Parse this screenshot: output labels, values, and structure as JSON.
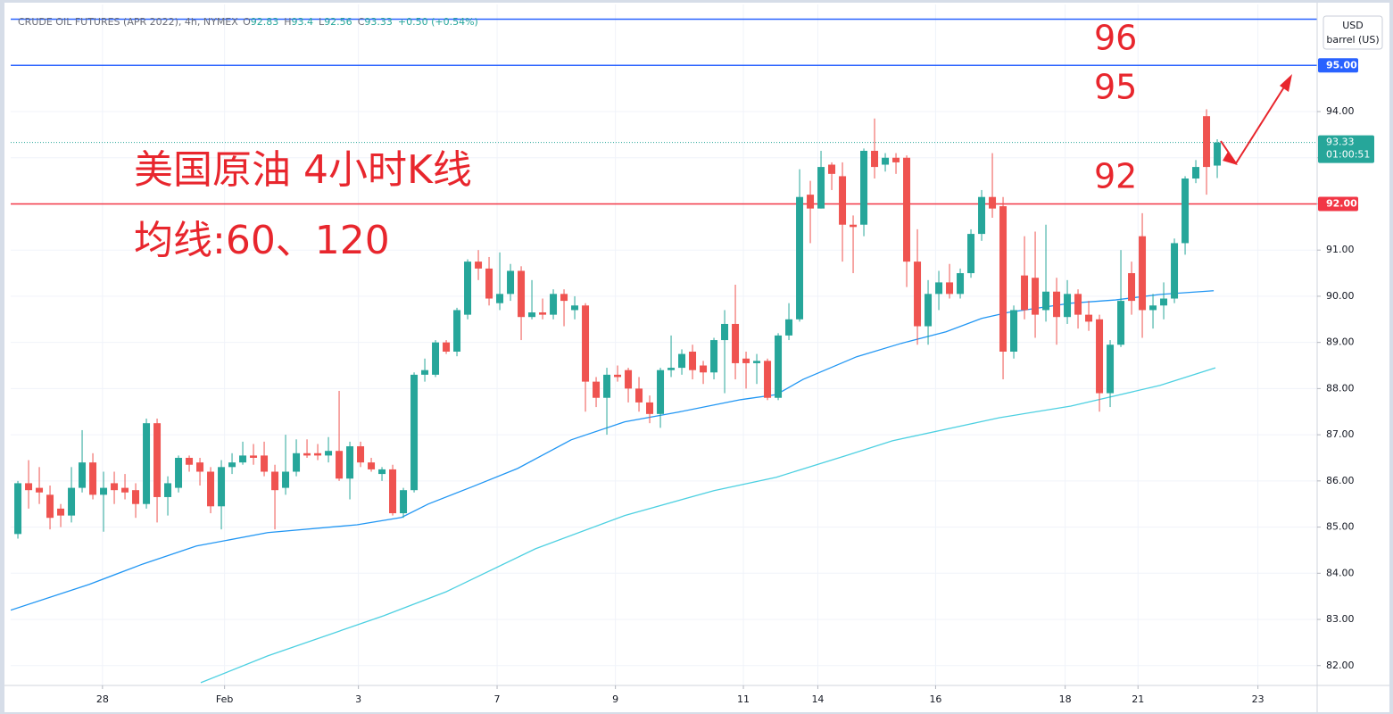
{
  "chart_data": {
    "type": "candlestick",
    "header": "CRUDE OIL FUTURES (APR 2022), 4h, NYMEX",
    "ohlc_legend": [
      {
        "label": "O",
        "value": 92.83
      },
      {
        "label": "H",
        "value": 93.4
      },
      {
        "label": "L",
        "value": 92.56
      },
      {
        "label": "C",
        "value": 93.33
      }
    ],
    "change": "+0.50 (+0.54%)",
    "currency": "USD",
    "unit": "barrel (US)",
    "up_color": "#26a69a",
    "down_color": "#ef5350",
    "x": [
      0,
      1,
      2,
      3,
      4,
      5,
      6,
      7,
      8,
      9,
      10,
      11,
      12,
      13,
      14,
      15,
      16,
      17,
      18,
      19,
      20,
      21,
      22,
      23,
      24,
      25,
      26,
      27,
      28,
      29,
      30,
      31,
      32,
      33,
      34,
      35,
      36,
      37,
      38,
      39,
      40,
      41,
      42,
      43,
      44,
      45,
      46,
      47,
      48,
      49,
      50,
      51,
      52,
      53,
      54,
      55,
      56,
      57,
      58,
      59,
      60,
      61,
      62,
      63,
      64,
      65,
      66,
      67,
      68,
      69,
      70,
      71,
      72,
      73,
      74,
      75,
      76,
      77,
      78,
      79,
      80,
      81,
      82,
      83,
      84,
      85,
      86,
      87,
      88,
      89,
      90,
      91,
      92,
      93,
      94,
      95,
      96,
      97,
      98,
      99,
      100,
      101,
      102,
      103,
      104,
      105,
      106,
      107,
      108,
      109,
      110,
      111,
      112
    ],
    "open": [
      84.85,
      85.95,
      85.85,
      85.7,
      85.4,
      85.25,
      85.85,
      86.4,
      85.7,
      85.95,
      85.85,
      85.8,
      85.5,
      87.25,
      85.65,
      85.85,
      86.5,
      86.4,
      86.2,
      85.45,
      86.3,
      86.4,
      86.55,
      86.55,
      86.2,
      85.85,
      86.2,
      86.6,
      86.6,
      86.55,
      86.65,
      86.05,
      86.75,
      86.4,
      86.15,
      86.25,
      85.3,
      85.8,
      88.3,
      88.3,
      89.0,
      88.8,
      89.6,
      90.75,
      90.6,
      89.85,
      90.05,
      90.55,
      89.55,
      89.65,
      89.6,
      90.05,
      89.7,
      89.8,
      88.15,
      87.8,
      88.3,
      88.4,
      88.0,
      87.7,
      87.45,
      88.4,
      88.45,
      88.8,
      88.5,
      88.35,
      89.05,
      89.4,
      88.65,
      88.55,
      88.6,
      87.8,
      89.15,
      89.5,
      92.2,
      91.9,
      92.85,
      92.6,
      91.55,
      91.55,
      93.15,
      92.85,
      93.0,
      93.0,
      90.75,
      89.35,
      90.05,
      90.3,
      90.05,
      90.5,
      91.35,
      92.15,
      91.95,
      88.8,
      90.45,
      90.4,
      89.7,
      90.1,
      89.55,
      90.05,
      89.6,
      89.5,
      87.9,
      88.95,
      90.5,
      91.3,
      89.7,
      89.8,
      89.95,
      91.15,
      92.55,
      93.9,
      92.83
    ],
    "high": [
      86.0,
      86.45,
      86.3,
      85.9,
      85.5,
      86.3,
      87.1,
      86.6,
      86.2,
      86.2,
      86.15,
      85.95,
      87.35,
      87.35,
      86.1,
      86.55,
      86.55,
      86.5,
      86.3,
      86.45,
      86.6,
      86.85,
      86.8,
      86.85,
      86.35,
      87.0,
      86.9,
      86.9,
      86.8,
      86.95,
      87.95,
      86.85,
      86.85,
      86.5,
      86.3,
      86.35,
      85.85,
      88.35,
      88.65,
      89.05,
      89.05,
      89.75,
      90.8,
      91.0,
      90.85,
      90.95,
      90.7,
      90.65,
      90.35,
      89.95,
      90.15,
      90.15,
      90.0,
      89.85,
      88.25,
      88.45,
      88.5,
      88.45,
      88.25,
      87.85,
      88.45,
      89.15,
      88.85,
      88.95,
      88.6,
      89.1,
      89.7,
      90.25,
      88.8,
      88.75,
      88.65,
      89.2,
      89.85,
      92.75,
      92.5,
      93.15,
      92.9,
      92.9,
      91.75,
      93.2,
      93.85,
      93.1,
      93.1,
      93.05,
      91.45,
      90.35,
      90.55,
      90.7,
      90.6,
      91.45,
      92.3,
      93.1,
      92.15,
      89.8,
      91.3,
      91.4,
      91.55,
      90.4,
      90.35,
      90.15,
      89.9,
      89.6,
      89.05,
      91.0,
      90.75,
      91.8,
      90.05,
      90.3,
      91.25,
      92.6,
      92.95,
      94.05,
      93.4
    ],
    "low": [
      84.75,
      85.4,
      85.5,
      84.95,
      85.0,
      85.1,
      85.75,
      85.6,
      84.9,
      85.5,
      85.6,
      85.2,
      85.4,
      85.1,
      85.25,
      85.75,
      86.2,
      85.9,
      85.3,
      84.95,
      86.15,
      86.35,
      86.35,
      86.1,
      84.95,
      85.7,
      86.1,
      86.5,
      86.45,
      86.4,
      86.0,
      85.6,
      86.3,
      86.2,
      86.0,
      85.25,
      85.2,
      85.75,
      88.15,
      88.25,
      88.75,
      88.7,
      89.5,
      90.35,
      89.8,
      89.7,
      89.9,
      89.05,
      89.5,
      89.5,
      89.5,
      89.35,
      89.5,
      87.5,
      87.6,
      87.0,
      88.15,
      87.7,
      87.5,
      87.25,
      87.15,
      88.25,
      88.3,
      88.2,
      88.1,
      88.2,
      87.9,
      88.2,
      88.0,
      88.1,
      87.75,
      87.75,
      89.05,
      89.45,
      91.15,
      91.9,
      92.3,
      90.75,
      90.5,
      91.3,
      92.55,
      92.7,
      92.65,
      90.2,
      88.95,
      88.95,
      89.7,
      89.95,
      89.95,
      90.4,
      91.2,
      91.7,
      88.2,
      88.65,
      89.5,
      89.1,
      89.45,
      88.95,
      89.4,
      89.3,
      89.25,
      87.5,
      87.6,
      88.9,
      89.6,
      89.1,
      89.3,
      89.5,
      89.85,
      90.9,
      92.45,
      92.2,
      92.56
    ],
    "close": [
      85.95,
      85.8,
      85.75,
      85.2,
      85.25,
      85.85,
      86.4,
      85.7,
      85.85,
      85.8,
      85.75,
      85.5,
      87.25,
      85.65,
      85.95,
      86.5,
      86.35,
      86.2,
      85.45,
      86.3,
      86.4,
      86.55,
      86.5,
      86.2,
      85.8,
      86.2,
      86.6,
      86.55,
      86.55,
      86.65,
      86.05,
      86.75,
      86.4,
      86.25,
      86.25,
      85.3,
      85.8,
      88.3,
      88.4,
      89.0,
      88.8,
      89.7,
      90.75,
      90.6,
      89.95,
      90.05,
      90.55,
      89.55,
      89.65,
      89.6,
      90.05,
      89.9,
      89.8,
      88.15,
      87.8,
      88.3,
      88.25,
      88.0,
      87.7,
      87.45,
      88.4,
      88.45,
      88.75,
      88.4,
      88.35,
      89.05,
      89.4,
      88.55,
      88.55,
      88.6,
      87.8,
      89.15,
      89.5,
      92.15,
      91.9,
      92.8,
      92.65,
      91.55,
      91.5,
      93.15,
      92.8,
      93.0,
      92.9,
      90.75,
      89.35,
      90.05,
      90.3,
      90.05,
      90.5,
      91.35,
      92.15,
      91.9,
      88.8,
      89.7,
      89.7,
      89.6,
      90.1,
      89.55,
      90.05,
      89.6,
      89.45,
      87.9,
      88.95,
      89.9,
      89.9,
      89.7,
      89.8,
      89.95,
      91.15,
      92.55,
      92.8,
      92.8,
      93.33
    ],
    "moving_averages": [
      {
        "color": "#2196f3",
        "x": [
          -0.67,
          6.67,
          11.67,
          16.67,
          23.33,
          31.67,
          35.83,
          38.33,
          42.5,
          46.67,
          51.67,
          56.67,
          61.67,
          67.5,
          70.83,
          73.33,
          78.33,
          82.5,
          86.67,
          90,
          92.5,
          98.33,
          102.5,
          106.67,
          111.67
        ],
        "values": [
          83.2,
          83.76,
          84.2,
          84.59,
          84.88,
          85.05,
          85.21,
          85.5,
          85.88,
          86.27,
          86.89,
          87.28,
          87.49,
          87.76,
          87.87,
          88.2,
          88.69,
          88.98,
          89.23,
          89.52,
          89.65,
          89.85,
          89.92,
          90.04,
          90.12
        ]
      },
      {
        "color": "#4dd0e1",
        "x": [
          17.08,
          23.33,
          34.17,
          40,
          48.33,
          56.67,
          65,
          70.83,
          77.5,
          81.67,
          91.67,
          98.33,
          106.67,
          111.83
        ],
        "values": [
          81.63,
          82.21,
          83.08,
          83.6,
          84.53,
          85.25,
          85.79,
          86.08,
          86.56,
          86.87,
          87.37,
          87.62,
          88.07,
          88.45
        ]
      }
    ],
    "levels": [
      {
        "value": 96.0,
        "color": "#2962ff"
      },
      {
        "value": 95,
        "label": "95.00",
        "color": "#2962ff"
      },
      {
        "value": 92,
        "label": "92.00",
        "color": "#f23645"
      }
    ],
    "last_price": {
      "value": 93.33,
      "countdown": "01:00:51",
      "color": "#26a69a"
    },
    "xlim": [
      -0.67,
      121.33
    ],
    "xticks": [
      {
        "value": 7.9,
        "label": "28"
      },
      {
        "value": 19.3,
        "label": "Feb"
      },
      {
        "value": 31.8,
        "label": "3"
      },
      {
        "value": 44.75,
        "label": "7"
      },
      {
        "value": 55.8,
        "label": "9"
      },
      {
        "value": 67.75,
        "label": "11"
      },
      {
        "value": 74.7,
        "label": "14"
      },
      {
        "value": 85.7,
        "label": "16"
      },
      {
        "value": 97.8,
        "label": "18"
      },
      {
        "value": 104.6,
        "label": "21"
      },
      {
        "value": 115.8,
        "label": "23"
      }
    ],
    "ylim": [
      81.57,
      96.32
    ],
    "yticks": [
      {
        "value": 82,
        "label": "82.00"
      },
      {
        "value": 83,
        "label": "83.00"
      },
      {
        "value": 84,
        "label": "84.00"
      },
      {
        "value": 85,
        "label": "85.00"
      },
      {
        "value": 86,
        "label": "86.00"
      },
      {
        "value": 87,
        "label": "87.00"
      },
      {
        "value": 88,
        "label": "88.00"
      },
      {
        "value": 89,
        "label": "89.00"
      },
      {
        "value": 90,
        "label": "90.00"
      },
      {
        "value": 91,
        "label": "91.00"
      },
      {
        "value": 92,
        "label": "92.00"
      },
      {
        "value": 93,
        "label": "93.00"
      },
      {
        "value": 94,
        "label": "94.00"
      }
    ],
    "grid": true,
    "annotations": [
      {
        "text": "美国原油 4小时K线"
      },
      {
        "text": "均线:60、120"
      },
      {
        "text": "96"
      },
      {
        "text": "95"
      },
      {
        "text": "92"
      }
    ],
    "annotation_color": "#e8262d"
  }
}
